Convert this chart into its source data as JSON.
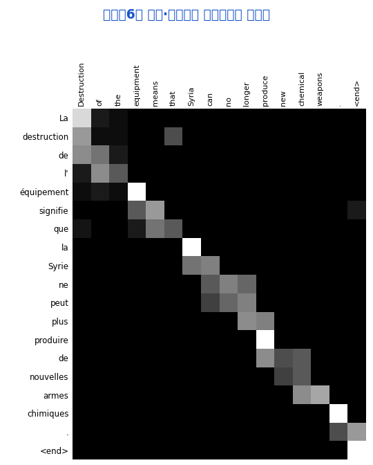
{
  "title": "＜그림6＞ 영어·프랑스어 번역에서의 어텐션",
  "title_bg": "#EEFF00",
  "title_fg": "#1a55cc",
  "bg_color": "#ffffff",
  "matrix_bg": "#000000",
  "x_labels": [
    "Destruction",
    "of",
    "the",
    "equipment",
    "means",
    "that",
    "Syria",
    "can",
    "no",
    "longer",
    "produce",
    "new",
    "chemical",
    "weapons",
    ".",
    "<end>"
  ],
  "y_labels": [
    "La",
    "destruction",
    "de",
    "l'",
    "équipement",
    "signifie",
    "que",
    "la",
    "Syrie",
    "ne",
    "peut",
    "plus",
    "produire",
    "de",
    "nouvelles",
    "armes",
    "chimiques",
    ".",
    "<end>"
  ],
  "attention": [
    [
      0.85,
      0.1,
      0.05,
      0.0,
      0.0,
      0.0,
      0.0,
      0.0,
      0.0,
      0.0,
      0.0,
      0.0,
      0.0,
      0.0,
      0.0,
      0.0
    ],
    [
      0.6,
      0.05,
      0.05,
      0.0,
      0.0,
      0.3,
      0.0,
      0.0,
      0.0,
      0.0,
      0.0,
      0.0,
      0.0,
      0.0,
      0.0,
      0.0
    ],
    [
      0.55,
      0.45,
      0.1,
      0.0,
      0.0,
      0.0,
      0.0,
      0.0,
      0.0,
      0.0,
      0.0,
      0.0,
      0.0,
      0.0,
      0.0,
      0.0
    ],
    [
      0.1,
      0.55,
      0.35,
      0.0,
      0.0,
      0.0,
      0.0,
      0.0,
      0.0,
      0.0,
      0.0,
      0.0,
      0.0,
      0.0,
      0.0,
      0.0
    ],
    [
      0.05,
      0.1,
      0.05,
      1.0,
      0.0,
      0.0,
      0.0,
      0.0,
      0.0,
      0.0,
      0.0,
      0.0,
      0.0,
      0.0,
      0.0,
      0.0
    ],
    [
      0.0,
      0.0,
      0.0,
      0.35,
      0.6,
      0.0,
      0.0,
      0.0,
      0.0,
      0.0,
      0.0,
      0.0,
      0.0,
      0.0,
      0.0,
      0.1
    ],
    [
      0.08,
      0.0,
      0.0,
      0.1,
      0.45,
      0.35,
      0.0,
      0.0,
      0.0,
      0.0,
      0.0,
      0.0,
      0.0,
      0.0,
      0.0,
      0.0
    ],
    [
      0.0,
      0.0,
      0.0,
      0.0,
      0.0,
      0.0,
      1.0,
      0.0,
      0.0,
      0.0,
      0.0,
      0.0,
      0.0,
      0.0,
      0.0,
      0.0
    ],
    [
      0.0,
      0.0,
      0.0,
      0.0,
      0.0,
      0.0,
      0.45,
      0.5,
      0.0,
      0.0,
      0.0,
      0.0,
      0.0,
      0.0,
      0.0,
      0.0
    ],
    [
      0.0,
      0.0,
      0.0,
      0.0,
      0.0,
      0.0,
      0.0,
      0.35,
      0.5,
      0.4,
      0.0,
      0.0,
      0.0,
      0.0,
      0.0,
      0.0
    ],
    [
      0.0,
      0.0,
      0.0,
      0.0,
      0.0,
      0.0,
      0.0,
      0.25,
      0.4,
      0.5,
      0.0,
      0.0,
      0.0,
      0.0,
      0.0,
      0.0
    ],
    [
      0.0,
      0.0,
      0.0,
      0.0,
      0.0,
      0.0,
      0.0,
      0.0,
      0.0,
      0.55,
      0.5,
      0.0,
      0.0,
      0.0,
      0.0,
      0.0
    ],
    [
      0.0,
      0.0,
      0.0,
      0.0,
      0.0,
      0.0,
      0.0,
      0.0,
      0.0,
      0.0,
      1.0,
      0.0,
      0.0,
      0.0,
      0.0,
      0.0
    ],
    [
      0.0,
      0.0,
      0.0,
      0.0,
      0.0,
      0.0,
      0.0,
      0.0,
      0.0,
      0.0,
      0.55,
      0.3,
      0.35,
      0.0,
      0.0,
      0.0
    ],
    [
      0.0,
      0.0,
      0.0,
      0.0,
      0.0,
      0.0,
      0.0,
      0.0,
      0.0,
      0.0,
      0.0,
      0.25,
      0.35,
      0.0,
      0.0,
      0.0
    ],
    [
      0.0,
      0.0,
      0.0,
      0.0,
      0.0,
      0.0,
      0.0,
      0.0,
      0.0,
      0.0,
      0.0,
      0.0,
      0.55,
      0.65,
      0.0,
      0.0
    ],
    [
      0.0,
      0.0,
      0.0,
      0.0,
      0.0,
      0.0,
      0.0,
      0.0,
      0.0,
      0.0,
      0.0,
      0.0,
      0.0,
      0.0,
      1.0,
      0.0
    ],
    [
      0.0,
      0.0,
      0.0,
      0.0,
      0.0,
      0.0,
      0.0,
      0.0,
      0.0,
      0.0,
      0.0,
      0.0,
      0.0,
      0.0,
      0.3,
      0.6
    ],
    [
      0.0,
      0.0,
      0.0,
      0.0,
      0.0,
      0.0,
      0.0,
      0.0,
      0.0,
      0.0,
      0.0,
      0.0,
      0.0,
      0.0,
      0.0,
      1.0
    ]
  ],
  "figsize": [
    5.4,
    6.72
  ],
  "dpi": 100
}
